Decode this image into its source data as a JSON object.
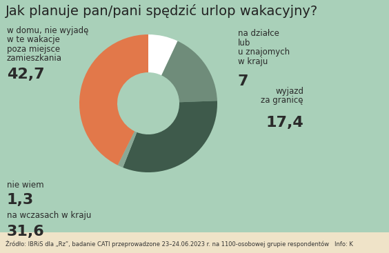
{
  "chart_data": {
    "type": "pie",
    "title": "Jak planuje pan/pani spędzić urlop wakacyjny?",
    "categories": [
      "na działce\nlub\nu znajomych\nw kraju",
      "wyjazd\nza granicę",
      "na wczasach w kraju",
      "nie wiem",
      "w domu, nie wyjadę\nw te wakacje\npoza miejsce\nzamieszkania"
    ],
    "values": [
      7,
      17.4,
      31.6,
      1.3,
      42.7
    ],
    "value_labels": [
      "7",
      "17,4",
      "31,6",
      "1,3",
      "42,7"
    ],
    "colors": [
      "#ffffff",
      "#6f8c7a",
      "#3e5a4b",
      "#8aa896",
      "#e2784a"
    ],
    "data_labels": true,
    "source": "Źródło: IBRiS dla „Rz”, badanie CATI przeprowadzone 23–24.06.2023 r. na 1100-osobowej grupie respondentów   Info: K"
  }
}
